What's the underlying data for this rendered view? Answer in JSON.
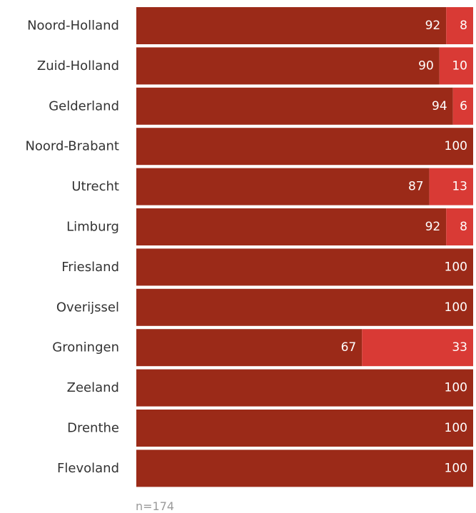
{
  "chart_data": {
    "type": "bar",
    "orientation": "horizontal",
    "stacked": true,
    "categories": [
      "Noord-Holland",
      "Zuid-Holland",
      "Gelderland",
      "Noord-Brabant",
      "Utrecht",
      "Limburg",
      "Friesland",
      "Overijssel",
      "Groningen",
      "Zeeland",
      "Drenthe",
      "Flevoland"
    ],
    "series": [
      {
        "values": [
          92,
          90,
          94,
          100,
          87,
          92,
          100,
          100,
          67,
          100,
          100,
          100
        ],
        "color": "#9b2a18"
      },
      {
        "values": [
          8,
          10,
          6,
          0,
          13,
          8,
          0,
          0,
          33,
          0,
          0,
          0
        ],
        "color": "#d93a35"
      }
    ],
    "xlim": [
      0,
      100
    ],
    "grid": false,
    "legend": "none"
  },
  "note": "n=174"
}
